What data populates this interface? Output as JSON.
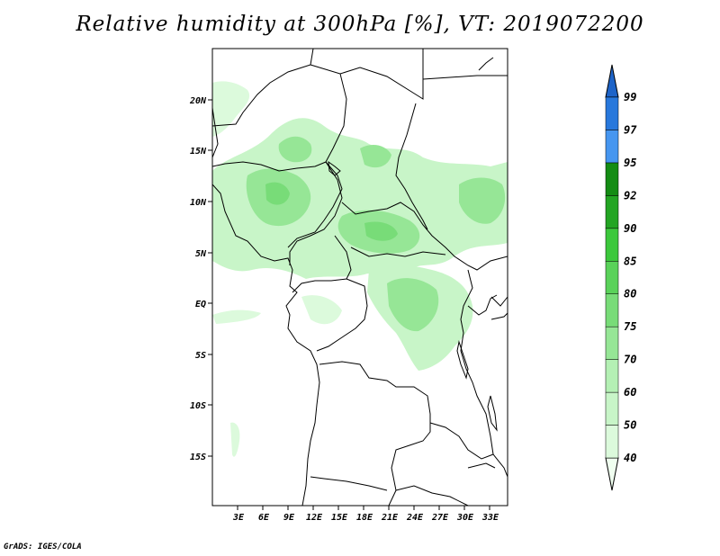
{
  "title": "Relative humidity at 300hPa [%], VT: 2019072200",
  "credit": "GrADS: IGES/COLA",
  "map": {
    "lon_range": [
      0,
      36
    ],
    "lat_range": [
      -20,
      25
    ],
    "x_ticks": [
      "3E",
      "6E",
      "9E",
      "12E",
      "15E",
      "18E",
      "21E",
      "24E",
      "27E",
      "30E",
      "33E"
    ],
    "y_ticks": [
      "20N",
      "15N",
      "10N",
      "5N",
      "EQ",
      "5S",
      "10S",
      "15S"
    ]
  },
  "colorbar": {
    "levels": [
      "40",
      "50",
      "60",
      "70",
      "75",
      "80",
      "85",
      "90",
      "92",
      "95",
      "97",
      "99"
    ],
    "colors": [
      "#f0fff0",
      "#dcfadc",
      "#c8f5c8",
      "#b4f0b4",
      "#96e696",
      "#78dc78",
      "#5ad25a",
      "#3cc83c",
      "#23a523",
      "#148c14",
      "#4696f0",
      "#2878dc",
      "#1e64c8"
    ]
  }
}
